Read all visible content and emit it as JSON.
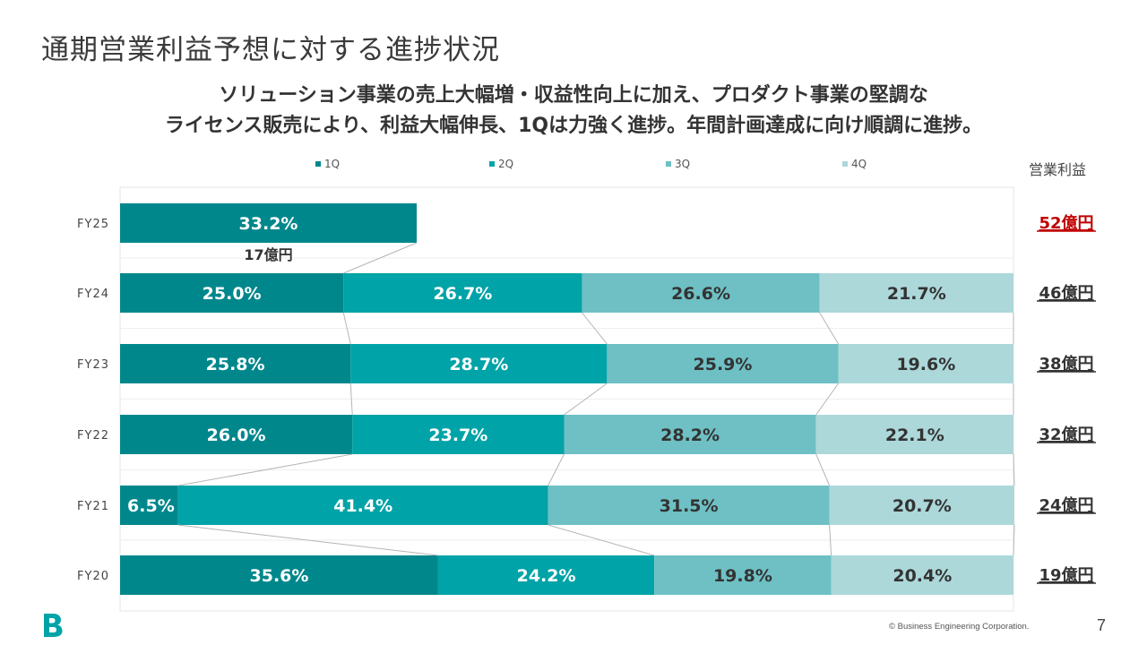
{
  "page": {
    "title": "通期営業利益予想に対する進捗状況",
    "subtitle_line1": "ソリューション事業の売上大幅増・収益性向上に加え、プロダクト事業の堅調な",
    "subtitle_line2": "ライセンス販売により、利益大幅伸長、1Qは力強く進捗。年間計画達成に向け順調に進捗。",
    "profit_header": "営業利益",
    "copyright": "© Business Engineering Corporation.",
    "page_number": "7",
    "logo_icon": "b-logo-icon"
  },
  "colors": {
    "q1": "#00878c",
    "q2": "#00a3a7",
    "q3": "#6ec0c4",
    "q4": "#acd8da",
    "highlight_total": "#c00000",
    "total_text": "#333333"
  },
  "chart_data": {
    "type": "bar",
    "orientation": "horizontal",
    "stacked": true,
    "percent": true,
    "grid": false,
    "legend_position": "top",
    "xlim": [
      0,
      100
    ],
    "categories": [
      "FY25",
      "FY24",
      "FY23",
      "FY22",
      "FY21",
      "FY20"
    ],
    "series": [
      {
        "name": "1Q",
        "values": [
          33.2,
          25.0,
          25.8,
          26.0,
          6.5,
          35.6
        ],
        "labels": [
          "33.2%",
          "25.0%",
          "25.8%",
          "26.0%",
          "6.5%",
          "35.6%"
        ]
      },
      {
        "name": "2Q",
        "values": [
          null,
          26.7,
          28.7,
          23.7,
          41.4,
          24.2
        ],
        "labels": [
          "",
          "26.7%",
          "28.7%",
          "23.7%",
          "41.4%",
          "24.2%"
        ]
      },
      {
        "name": "3Q",
        "values": [
          null,
          26.6,
          25.9,
          28.2,
          31.5,
          19.8
        ],
        "labels": [
          "",
          "26.6%",
          "25.9%",
          "28.2%",
          "31.5%",
          "19.8%"
        ]
      },
      {
        "name": "4Q",
        "values": [
          null,
          21.7,
          19.6,
          22.1,
          20.7,
          20.4
        ],
        "labels": [
          "",
          "21.7%",
          "19.6%",
          "22.1%",
          "20.7%",
          "20.4%"
        ]
      }
    ],
    "totals": [
      "52億円",
      "46億円",
      "38億円",
      "32億円",
      "24億円",
      "19億円"
    ],
    "annotations": [
      {
        "category": "FY25",
        "text": "17億円"
      }
    ]
  }
}
